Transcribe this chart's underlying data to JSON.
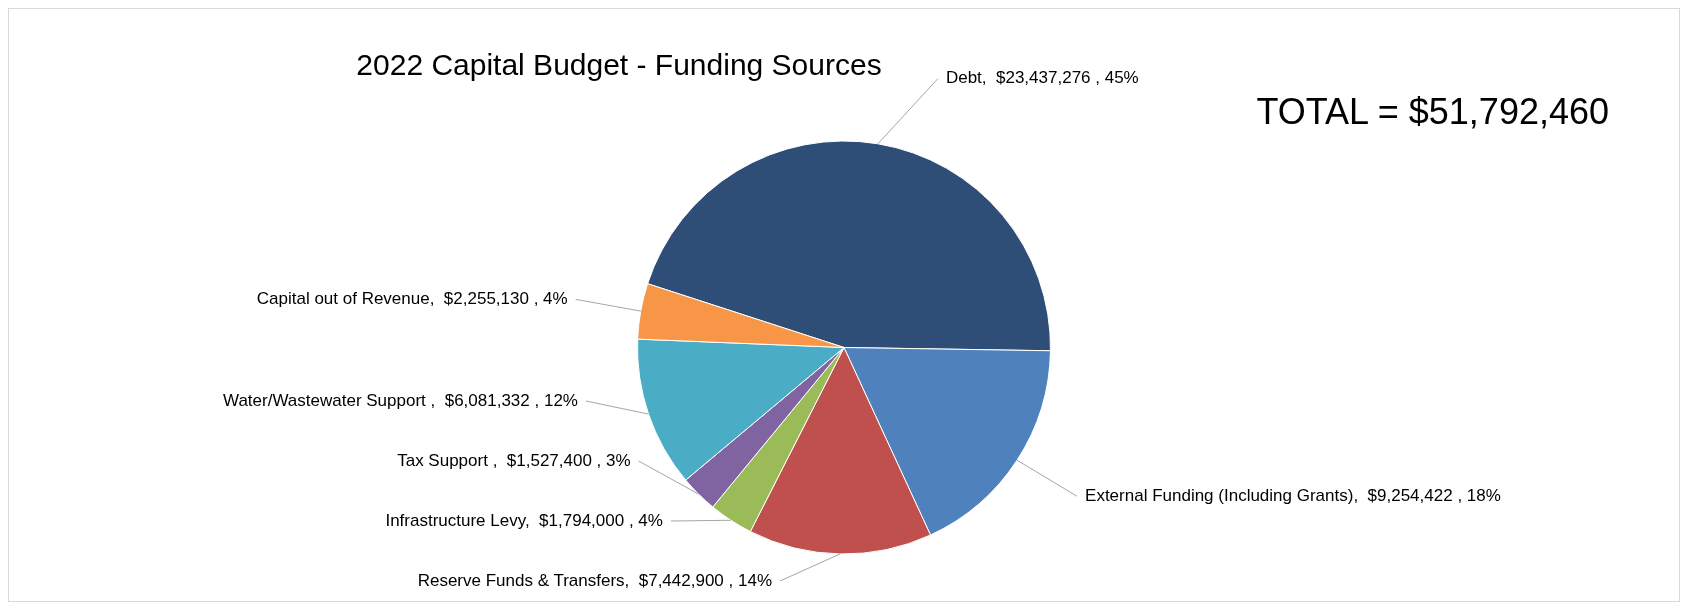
{
  "chart_data": {
    "type": "pie",
    "title": "2022 Capital Budget - Funding Sources",
    "annotations": [
      "TOTAL = $51,792,460"
    ],
    "categories": [
      "Debt",
      "External Funding (Including Grants)",
      "Reserve Funds & Transfers",
      "Infrastructure Levy",
      "Tax Support ",
      "Water/Wastewater Support ",
      "Capital out of Revenue"
    ],
    "values": [
      23437276,
      9254422,
      7442900,
      1794000,
      1527400,
      6081332,
      2255130
    ],
    "value_labels": [
      "$23,437,276 , 45%",
      "$9,254,422 , 18%",
      "$7,442,900 , 14%",
      "$1,794,000 , 4%",
      "$1,527,400 , 3%",
      "$6,081,332 , 12%",
      "$2,255,130 , 4%"
    ],
    "colors": [
      "#2e4e77",
      "#4f81bd",
      "#c0504d",
      "#9bbb59",
      "#8064a2",
      "#4bacc6",
      "#f79646"
    ],
    "legend": false
  }
}
